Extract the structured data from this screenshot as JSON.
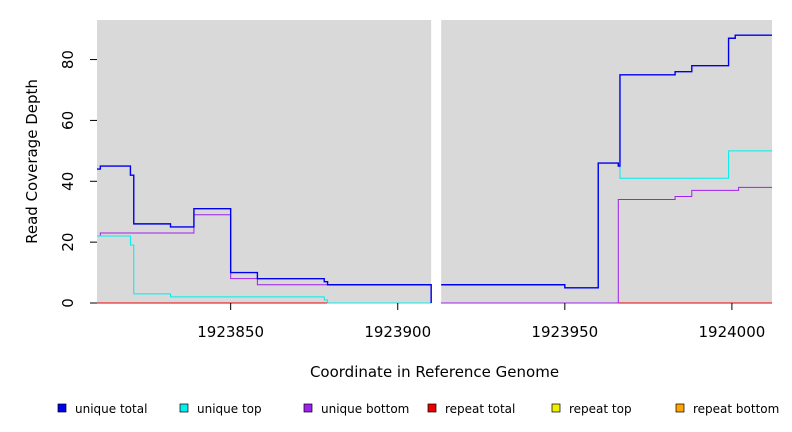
{
  "chart_data": {
    "type": "line",
    "xlabel": "Coordinate in Reference Genome",
    "ylabel": "Read Coverage Depth",
    "xlim": [
      1923810,
      1924012
    ],
    "ylim": [
      0,
      93
    ],
    "x_ticks": [
      {
        "value": 1923850,
        "label": "1923850"
      },
      {
        "value": 1923900,
        "label": "1923900"
      },
      {
        "value": 1923950,
        "label": "1923950"
      },
      {
        "value": 1924000,
        "label": "1924000"
      }
    ],
    "y_ticks": [
      {
        "value": 0,
        "label": "0"
      },
      {
        "value": 20,
        "label": "20"
      },
      {
        "value": 40,
        "label": "40"
      },
      {
        "value": 60,
        "label": "60"
      },
      {
        "value": 80,
        "label": "80"
      }
    ],
    "panels": [
      {
        "x_start": 1923810,
        "x_end": 1923910,
        "background": "#d9d9d9"
      },
      {
        "x_start": 1923913,
        "x_end": 1924012,
        "background": "#d9d9d9"
      }
    ],
    "gap": {
      "x_start": 1923910,
      "x_end": 1923913
    },
    "step_shape": "post",
    "legend_position": "bottom",
    "series": [
      {
        "name": "unique total",
        "color": "#0000ee",
        "segments": [
          [
            [
              1923810,
              44
            ],
            [
              1923811,
              45
            ],
            [
              1923820,
              42
            ],
            [
              1923821,
              26
            ],
            [
              1923832,
              25
            ],
            [
              1923839,
              31
            ],
            [
              1923850,
              10
            ],
            [
              1923858,
              8
            ],
            [
              1923878,
              7
            ],
            [
              1923879,
              6
            ],
            [
              1923910,
              0
            ]
          ],
          [
            [
              1923913,
              6
            ],
            [
              1923950,
              5
            ],
            [
              1923960,
              46
            ],
            [
              1923966,
              45
            ],
            [
              1923966.5,
              75
            ],
            [
              1923983,
              76
            ],
            [
              1923988,
              78
            ],
            [
              1923999,
              87
            ],
            [
              1924001,
              88
            ],
            [
              1924012,
              88
            ]
          ]
        ]
      },
      {
        "name": "unique top",
        "color": "#00eeee",
        "segments": [
          [
            [
              1923810,
              22
            ],
            [
              1923820,
              19
            ],
            [
              1923821,
              3
            ],
            [
              1923832,
              2
            ],
            [
              1923878,
              1
            ],
            [
              1923879,
              0
            ],
            [
              1923910,
              0
            ]
          ],
          [
            [
              1923913,
              6
            ],
            [
              1923950,
              5
            ],
            [
              1923960,
              46
            ],
            [
              1923966,
              45
            ],
            [
              1923966.5,
              41
            ],
            [
              1923999,
              50
            ],
            [
              1924012,
              50
            ]
          ]
        ]
      },
      {
        "name": "unique bottom",
        "color": "#a020f0",
        "segments": [
          [
            [
              1923810,
              22
            ],
            [
              1923811,
              23
            ],
            [
              1923839,
              29
            ],
            [
              1923850,
              8
            ],
            [
              1923858,
              6
            ],
            [
              1923879,
              6
            ],
            [
              1923910,
              0
            ]
          ],
          [
            [
              1923913,
              0
            ],
            [
              1923966,
              34
            ],
            [
              1923983,
              35
            ],
            [
              1923988,
              37
            ],
            [
              1924002,
              38
            ],
            [
              1924012,
              38
            ]
          ]
        ]
      },
      {
        "name": "repeat total",
        "color": "#ee0000",
        "segments": [
          [
            [
              1923810,
              0
            ],
            [
              1923910,
              0
            ]
          ],
          [
            [
              1923913,
              0
            ],
            [
              1924012,
              0
            ]
          ]
        ]
      },
      {
        "name": "repeat top",
        "color": "#eeee00",
        "segments": [
          [
            [
              1923810,
              0
            ],
            [
              1923910,
              0
            ]
          ],
          [
            [
              1923913,
              0
            ],
            [
              1924012,
              0
            ]
          ]
        ]
      },
      {
        "name": "repeat bottom",
        "color": "#ffa500",
        "segments": [
          [
            [
              1923810,
              0
            ],
            [
              1923910,
              0
            ]
          ],
          [
            [
              1923913,
              0
            ],
            [
              1924012,
              0
            ]
          ]
        ]
      }
    ]
  }
}
